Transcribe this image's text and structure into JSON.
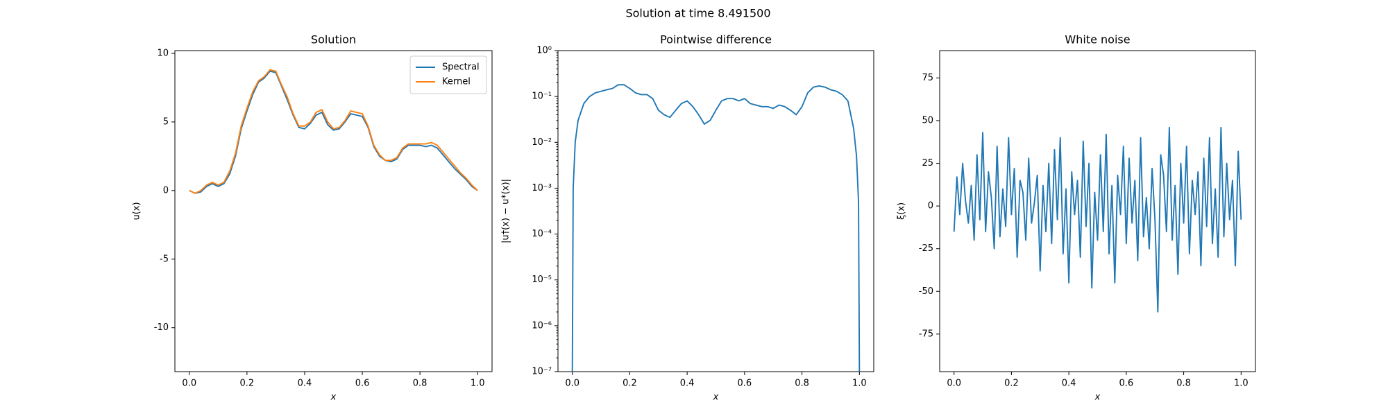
{
  "title": "Solution at time 8.491500",
  "chart_data": [
    {
      "type": "line",
      "title": "Solution",
      "xlabel": "x",
      "ylabel": "u(x)",
      "legend": "upper right",
      "x": [
        0,
        0.02,
        0.04,
        0.06,
        0.08,
        0.1,
        0.12,
        0.14,
        0.16,
        0.18,
        0.2,
        0.22,
        0.24,
        0.26,
        0.28,
        0.3,
        0.32,
        0.34,
        0.36,
        0.38,
        0.4,
        0.42,
        0.44,
        0.46,
        0.48,
        0.5,
        0.52,
        0.54,
        0.56,
        0.58,
        0.6,
        0.62,
        0.64,
        0.66,
        0.68,
        0.7,
        0.72,
        0.74,
        0.76,
        0.78,
        0.8,
        0.82,
        0.84,
        0.86,
        0.88,
        0.9,
        0.92,
        0.94,
        0.96,
        0.98,
        1
      ],
      "series": [
        {
          "name": "Spectral",
          "color": "#1f77b4",
          "values": [
            0,
            -0.2,
            -0.1,
            0.3,
            0.5,
            0.3,
            0.5,
            1.2,
            2.5,
            4.5,
            5.8,
            7.0,
            7.9,
            8.2,
            8.7,
            8.6,
            7.6,
            6.6,
            5.5,
            4.6,
            4.5,
            4.9,
            5.5,
            5.7,
            4.8,
            4.4,
            4.5,
            5.0,
            5.6,
            5.5,
            5.4,
            4.6,
            3.2,
            2.5,
            2.2,
            2.1,
            2.3,
            3.0,
            3.3,
            3.3,
            3.3,
            3.2,
            3.3,
            3.1,
            2.6,
            2.1,
            1.6,
            1.2,
            0.8,
            0.3,
            0
          ]
        },
        {
          "name": "Kernel",
          "color": "#ff7f0e",
          "values": [
            0,
            -0.2,
            0,
            0.4,
            0.6,
            0.4,
            0.6,
            1.4,
            2.7,
            4.7,
            6.0,
            7.2,
            8.0,
            8.3,
            8.8,
            8.7,
            7.7,
            6.8,
            5.6,
            4.7,
            4.7,
            5.0,
            5.7,
            5.9,
            5.0,
            4.5,
            4.6,
            5.1,
            5.8,
            5.7,
            5.6,
            4.7,
            3.3,
            2.6,
            2.2,
            2.2,
            2.4,
            3.1,
            3.4,
            3.4,
            3.4,
            3.4,
            3.5,
            3.3,
            2.8,
            2.3,
            1.8,
            1.3,
            0.9,
            0.4,
            0
          ]
        }
      ],
      "xlim": [
        -0.05,
        1.05
      ],
      "xticks": [
        {
          "value": 0,
          "label": "0.0"
        },
        0.2,
        0.4,
        0.6,
        0.8,
        {
          "value": 1,
          "label": "1.0"
        }
      ],
      "ylim": [
        -13.2,
        10.2
      ],
      "yticks": [
        -10,
        -5,
        0,
        5,
        10
      ]
    },
    {
      "type": "line",
      "title": "Pointwise difference",
      "xlabel": "x",
      "ylabel": "|u†(x) − u*(x)|",
      "log_y": true,
      "x": [
        0,
        0.003,
        0.01,
        0.02,
        0.04,
        0.06,
        0.08,
        0.1,
        0.12,
        0.14,
        0.16,
        0.18,
        0.2,
        0.22,
        0.24,
        0.26,
        0.28,
        0.3,
        0.32,
        0.34,
        0.36,
        0.38,
        0.4,
        0.42,
        0.44,
        0.46,
        0.48,
        0.5,
        0.52,
        0.54,
        0.56,
        0.58,
        0.6,
        0.62,
        0.64,
        0.66,
        0.68,
        0.7,
        0.72,
        0.74,
        0.76,
        0.78,
        0.8,
        0.82,
        0.84,
        0.86,
        0.88,
        0.9,
        0.92,
        0.94,
        0.96,
        0.98,
        0.99,
        0.997,
        1
      ],
      "series": [
        {
          "color": "#1f77b4",
          "values": [
            1e-07,
            0.001,
            0.01,
            0.03,
            0.07,
            0.1,
            0.12,
            0.13,
            0.14,
            0.15,
            0.18,
            0.18,
            0.15,
            0.12,
            0.11,
            0.11,
            0.09,
            0.05,
            0.04,
            0.035,
            0.05,
            0.07,
            0.08,
            0.06,
            0.04,
            0.025,
            0.03,
            0.05,
            0.08,
            0.09,
            0.09,
            0.08,
            0.09,
            0.07,
            0.065,
            0.06,
            0.06,
            0.055,
            0.065,
            0.06,
            0.05,
            0.04,
            0.06,
            0.12,
            0.16,
            0.17,
            0.16,
            0.14,
            0.13,
            0.11,
            0.08,
            0.02,
            0.005,
            0.0005,
            1e-07
          ]
        }
      ],
      "xlim": [
        -0.05,
        1.05
      ],
      "xticks": [
        {
          "value": 0,
          "label": "0.0"
        },
        0.2,
        0.4,
        0.6,
        0.8,
        {
          "value": 1,
          "label": "1.0"
        }
      ],
      "ylim": [
        1e-07,
        1
      ],
      "yticks": [
        {
          "value": 1e-07,
          "label": "10⁻⁷"
        },
        {
          "value": 1e-06,
          "label": "10⁻⁶"
        },
        {
          "value": 1e-05,
          "label": "10⁻⁵"
        },
        {
          "value": 0.0001,
          "label": "10⁻⁴"
        },
        {
          "value": 0.001,
          "label": "10⁻³"
        },
        {
          "value": 0.01,
          "label": "10⁻²"
        },
        {
          "value": 0.1,
          "label": "10⁻¹"
        },
        {
          "value": 1,
          "label": "10⁰"
        }
      ]
    },
    {
      "type": "line",
      "title": "White noise",
      "xlabel": "x",
      "ylabel": "ξ(x)",
      "x": [
        0,
        0.01,
        0.02,
        0.03,
        0.04,
        0.05,
        0.06,
        0.07,
        0.08,
        0.09,
        0.1,
        0.11,
        0.12,
        0.13,
        0.14,
        0.15,
        0.16,
        0.17,
        0.18,
        0.19,
        0.2,
        0.21,
        0.22,
        0.23,
        0.24,
        0.25,
        0.26,
        0.27,
        0.28,
        0.29,
        0.3,
        0.31,
        0.32,
        0.33,
        0.34,
        0.35,
        0.36,
        0.37,
        0.38,
        0.39,
        0.4,
        0.41,
        0.42,
        0.43,
        0.44,
        0.45,
        0.46,
        0.47,
        0.48,
        0.49,
        0.5,
        0.51,
        0.52,
        0.53,
        0.54,
        0.55,
        0.56,
        0.57,
        0.58,
        0.59,
        0.6,
        0.61,
        0.62,
        0.63,
        0.64,
        0.65,
        0.66,
        0.67,
        0.68,
        0.69,
        0.7,
        0.71,
        0.72,
        0.73,
        0.74,
        0.75,
        0.76,
        0.77,
        0.78,
        0.79,
        0.8,
        0.81,
        0.82,
        0.83,
        0.84,
        0.85,
        0.86,
        0.87,
        0.88,
        0.89,
        0.9,
        0.91,
        0.92,
        0.93,
        0.94,
        0.95,
        0.96,
        0.97,
        0.98,
        0.99,
        1
      ],
      "series": [
        {
          "color": "#1f77b4",
          "values": [
            -15,
            17,
            -5,
            25,
            3,
            -10,
            12,
            -20,
            30,
            -8,
            43,
            -15,
            20,
            5,
            -25,
            35,
            -18,
            10,
            -12,
            40,
            -5,
            22,
            -30,
            15,
            8,
            -20,
            28,
            -10,
            2,
            18,
            -38,
            12,
            -15,
            25,
            -22,
            33,
            -8,
            40,
            -28,
            10,
            -45,
            20,
            -5,
            15,
            -30,
            38,
            -12,
            25,
            -48,
            8,
            -20,
            30,
            -15,
            42,
            -28,
            12,
            -45,
            18,
            -5,
            35,
            -22,
            28,
            -10,
            15,
            -32,
            40,
            -18,
            5,
            -25,
            22,
            -8,
            -62,
            30,
            18,
            -15,
            46,
            -20,
            12,
            -40,
            25,
            -10,
            35,
            -28,
            15,
            -5,
            20,
            -35,
            28,
            -12,
            40,
            -22,
            10,
            -30,
            46,
            -18,
            25,
            -8,
            15,
            -35,
            32,
            -8
          ]
        }
      ],
      "xlim": [
        -0.05,
        1.05
      ],
      "xticks": [
        {
          "value": 0,
          "label": "0.0"
        },
        0.2,
        0.4,
        0.6,
        0.8,
        {
          "value": 1,
          "label": "1.0"
        }
      ],
      "ylim": [
        -97,
        91
      ],
      "yticks": [
        -75,
        -50,
        -25,
        0,
        25,
        50,
        75
      ]
    }
  ]
}
